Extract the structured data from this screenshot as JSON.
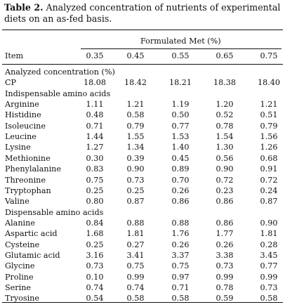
{
  "caption": {
    "lead": "Table 2.",
    "text": " Analyzed concentration of nutrients of experimental diets on an as-fed basis."
  },
  "header": {
    "group_label": "Formulated Met (%)",
    "item_label": "Item",
    "levels": [
      "0.35",
      "0.45",
      "0.55",
      "0.65",
      "0.75"
    ]
  },
  "sections": {
    "analyzed": "Analyzed concentration (%)",
    "indispensable": "Indispensable amino acids",
    "dispensable": "Dispensable amino acids"
  },
  "rows": [
    {
      "name": "CP",
      "values": [
        "18.08",
        "18.42",
        "18.21",
        "18.38",
        "18.40"
      ]
    },
    {
      "name": "Arginine",
      "values": [
        "1.11",
        "1.21",
        "1.19",
        "1.20",
        "1.21"
      ]
    },
    {
      "name": "Histidine",
      "values": [
        "0.48",
        "0.58",
        "0.50",
        "0.52",
        "0.51"
      ]
    },
    {
      "name": "Isoleucine",
      "values": [
        "0.71",
        "0.79",
        "0.77",
        "0.78",
        "0.79"
      ]
    },
    {
      "name": "Leucine",
      "values": [
        "1.44",
        "1.55",
        "1.53",
        "1.54",
        "1.56"
      ]
    },
    {
      "name": "Lysine",
      "values": [
        "1.27",
        "1.34",
        "1.40",
        "1.30",
        "1.26"
      ]
    },
    {
      "name": "Methionine",
      "values": [
        "0.30",
        "0.39",
        "0.45",
        "0.56",
        "0.68"
      ]
    },
    {
      "name": "Phenylalanine",
      "values": [
        "0.83",
        "0.90",
        "0.89",
        "0.90",
        "0.91"
      ]
    },
    {
      "name": "Threonine",
      "values": [
        "0.75",
        "0.73",
        "0.70",
        "0.72",
        "0.72"
      ]
    },
    {
      "name": "Tryptophan",
      "values": [
        "0.25",
        "0.25",
        "0.26",
        "0.23",
        "0.24"
      ]
    },
    {
      "name": "Valine",
      "values": [
        "0.80",
        "0.87",
        "0.86",
        "0.86",
        "0.87"
      ]
    },
    {
      "name": "Alanine",
      "values": [
        "0.84",
        "0.88",
        "0.88",
        "0.86",
        "0.90"
      ]
    },
    {
      "name": "Aspartic acid",
      "values": [
        "1.68",
        "1.81",
        "1.76",
        "1.77",
        "1.81"
      ]
    },
    {
      "name": "Cysteine",
      "values": [
        "0.25",
        "0.27",
        "0.26",
        "0.26",
        "0.28"
      ]
    },
    {
      "name": "Glutamic acid",
      "values": [
        "3.16",
        "3.41",
        "3.37",
        "3.38",
        "3.45"
      ]
    },
    {
      "name": "Glycine",
      "values": [
        "0.73",
        "0.75",
        "0.75",
        "0.73",
        "0.77"
      ]
    },
    {
      "name": "Proline",
      "values": [
        "0.10",
        "0.99",
        "0.97",
        "0.99",
        "0.99"
      ]
    },
    {
      "name": "Serine",
      "values": [
        "0.74",
        "0.74",
        "0.71",
        "0.78",
        "0.73"
      ]
    },
    {
      "name": "Tryosine",
      "values": [
        "0.54",
        "0.58",
        "0.58",
        "0.59",
        "0.58"
      ]
    }
  ]
}
